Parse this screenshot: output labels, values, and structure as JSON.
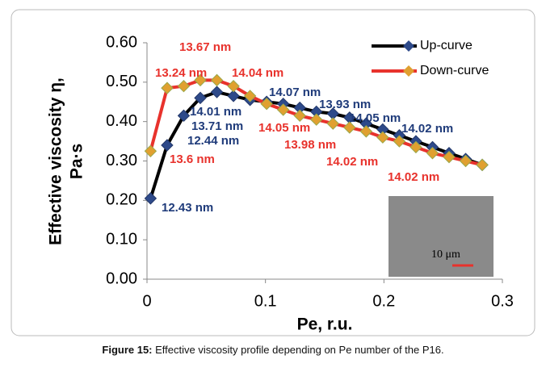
{
  "chart_data": {
    "type": "line",
    "y_label": [
      "Effective viscosity η,",
      "Pa·s"
    ],
    "x_label": "Pe, r.u.",
    "x": [
      0.003,
      0.017,
      0.031,
      0.045,
      0.059,
      0.073,
      0.087,
      0.101,
      0.115,
      0.129,
      0.143,
      0.157,
      0.171,
      0.185,
      0.199,
      0.213,
      0.227,
      0.241,
      0.255,
      0.269,
      0.283
    ],
    "series": [
      {
        "name": "Up-curve",
        "color": "#000000",
        "marker_color": "#2e4a8a",
        "values": [
          0.205,
          0.34,
          0.415,
          0.46,
          0.475,
          0.465,
          0.455,
          0.45,
          0.445,
          0.435,
          0.425,
          0.42,
          0.41,
          0.395,
          0.38,
          0.365,
          0.35,
          0.335,
          0.32,
          0.305,
          0.29
        ],
        "annotations": [
          "12.43 nm",
          "12.44 nm",
          "13.71 nm",
          "14.01 nm",
          "14.07 nm",
          "13.93 nm",
          "14.05 nm",
          "14.02 nm"
        ]
      },
      {
        "name": "Down-curve",
        "color": "#e8322c",
        "marker_color": "#e0a030",
        "values": [
          0.325,
          0.485,
          0.49,
          0.505,
          0.505,
          0.49,
          0.465,
          0.445,
          0.43,
          0.415,
          0.405,
          0.395,
          0.385,
          0.375,
          0.36,
          0.35,
          0.335,
          0.32,
          0.31,
          0.3,
          0.29
        ],
        "annotations": [
          "13.6 nm",
          "13.24 nm",
          "13.67 nm",
          "14.04 nm",
          "14.05 nm",
          "13.98 nm",
          "14.02 nm",
          "14.02 nm"
        ]
      }
    ],
    "xlim": [
      0,
      0.3
    ],
    "xticks": [
      0,
      0.1,
      0.2,
      0.3
    ],
    "ylim": [
      0,
      0.6
    ],
    "yticks": [
      {
        "value": 0,
        "label": "0.00"
      },
      {
        "value": 0.1,
        "label": "0.10"
      },
      {
        "value": 0.2,
        "label": "0.20"
      },
      {
        "value": 0.3,
        "label": "0.30"
      },
      {
        "value": 0.4,
        "label": "0.40"
      },
      {
        "value": 0.5,
        "label": "0.50"
      },
      {
        "value": 0.6,
        "label": "0.60"
      }
    ],
    "inset_label": "10 μm"
  },
  "caption": {
    "label": "Figure 15:",
    "text": " Effective viscosity profile depending on Pe number of the P16."
  }
}
